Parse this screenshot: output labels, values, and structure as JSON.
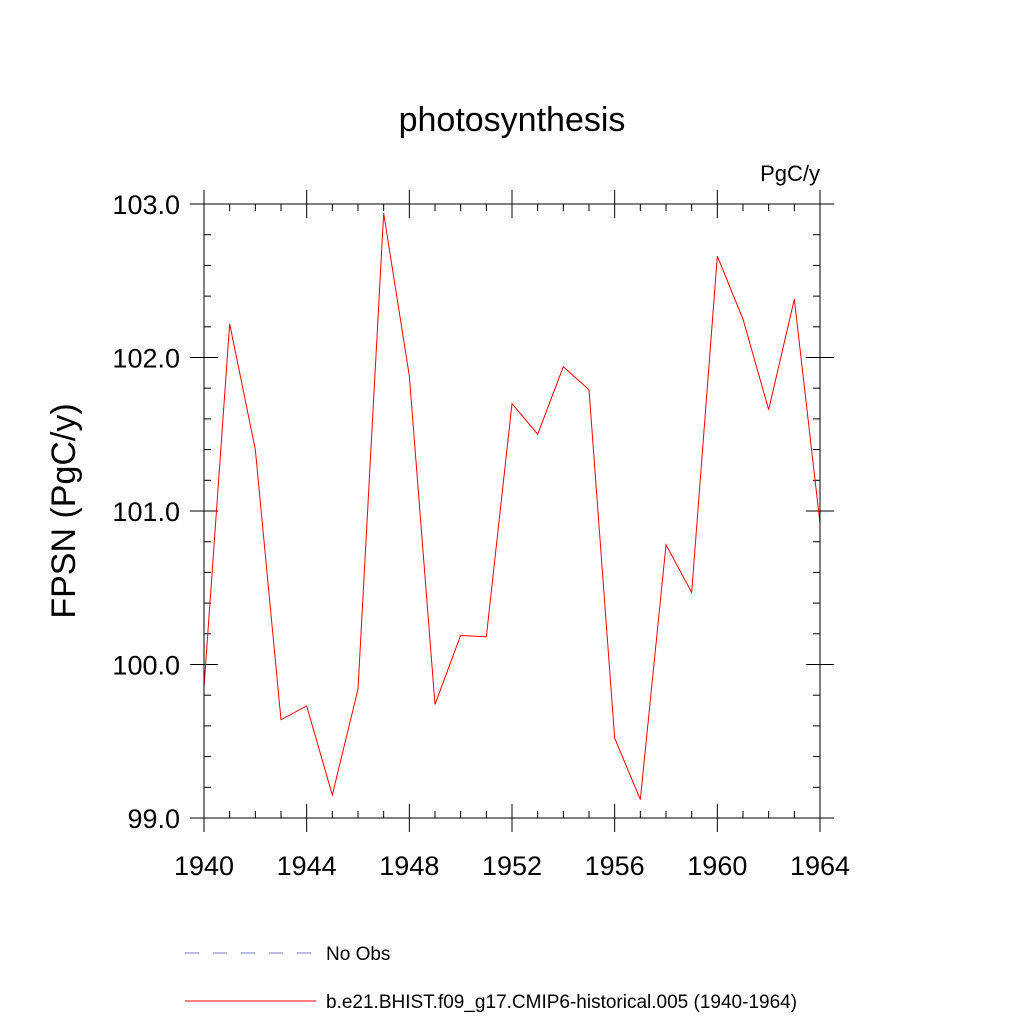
{
  "chart_data": {
    "type": "line",
    "title": "photosynthesis",
    "units_label": "PgC/y",
    "ylabel": "FPSN  (PgC/y)",
    "xlabel": "",
    "xlim": [
      1940,
      1964
    ],
    "ylim": [
      99.0,
      103.0
    ],
    "x_ticks": [
      1940,
      1944,
      1948,
      1952,
      1956,
      1960,
      1964
    ],
    "x_tick_labels": [
      "1940",
      "1944",
      "1948",
      "1952",
      "1956",
      "1960",
      "1964"
    ],
    "y_ticks": [
      99.0,
      100.0,
      101.0,
      102.0,
      103.0
    ],
    "y_tick_labels": [
      "99.0",
      "100.0",
      "101.0",
      "102.0",
      "103.0"
    ],
    "grid": false,
    "legend_position": "bottom",
    "series": [
      {
        "name": "b.e21.BHIST.f09_g17.CMIP6-historical.005 (1940-1964)",
        "color": "#ff0000",
        "style": "solid",
        "x": [
          1940,
          1941,
          1942,
          1943,
          1944,
          1945,
          1946,
          1947,
          1948,
          1949,
          1950,
          1951,
          1952,
          1953,
          1954,
          1955,
          1956,
          1957,
          1958,
          1959,
          1960,
          1961,
          1962,
          1963,
          1964
        ],
        "y": [
          99.85,
          102.22,
          101.4,
          99.64,
          99.73,
          99.15,
          99.84,
          102.94,
          101.88,
          99.74,
          100.19,
          100.18,
          101.7,
          101.5,
          101.94,
          101.79,
          99.52,
          99.12,
          100.78,
          100.47,
          102.66,
          102.25,
          101.66,
          102.38,
          100.92
        ]
      }
    ],
    "legend": [
      {
        "label": "No Obs",
        "color": "#7b74c7",
        "style": "dashed"
      },
      {
        "label": "b.e21.BHIST.f09_g17.CMIP6-historical.005 (1940-1964)",
        "color": "#ff0000",
        "style": "solid"
      }
    ]
  }
}
